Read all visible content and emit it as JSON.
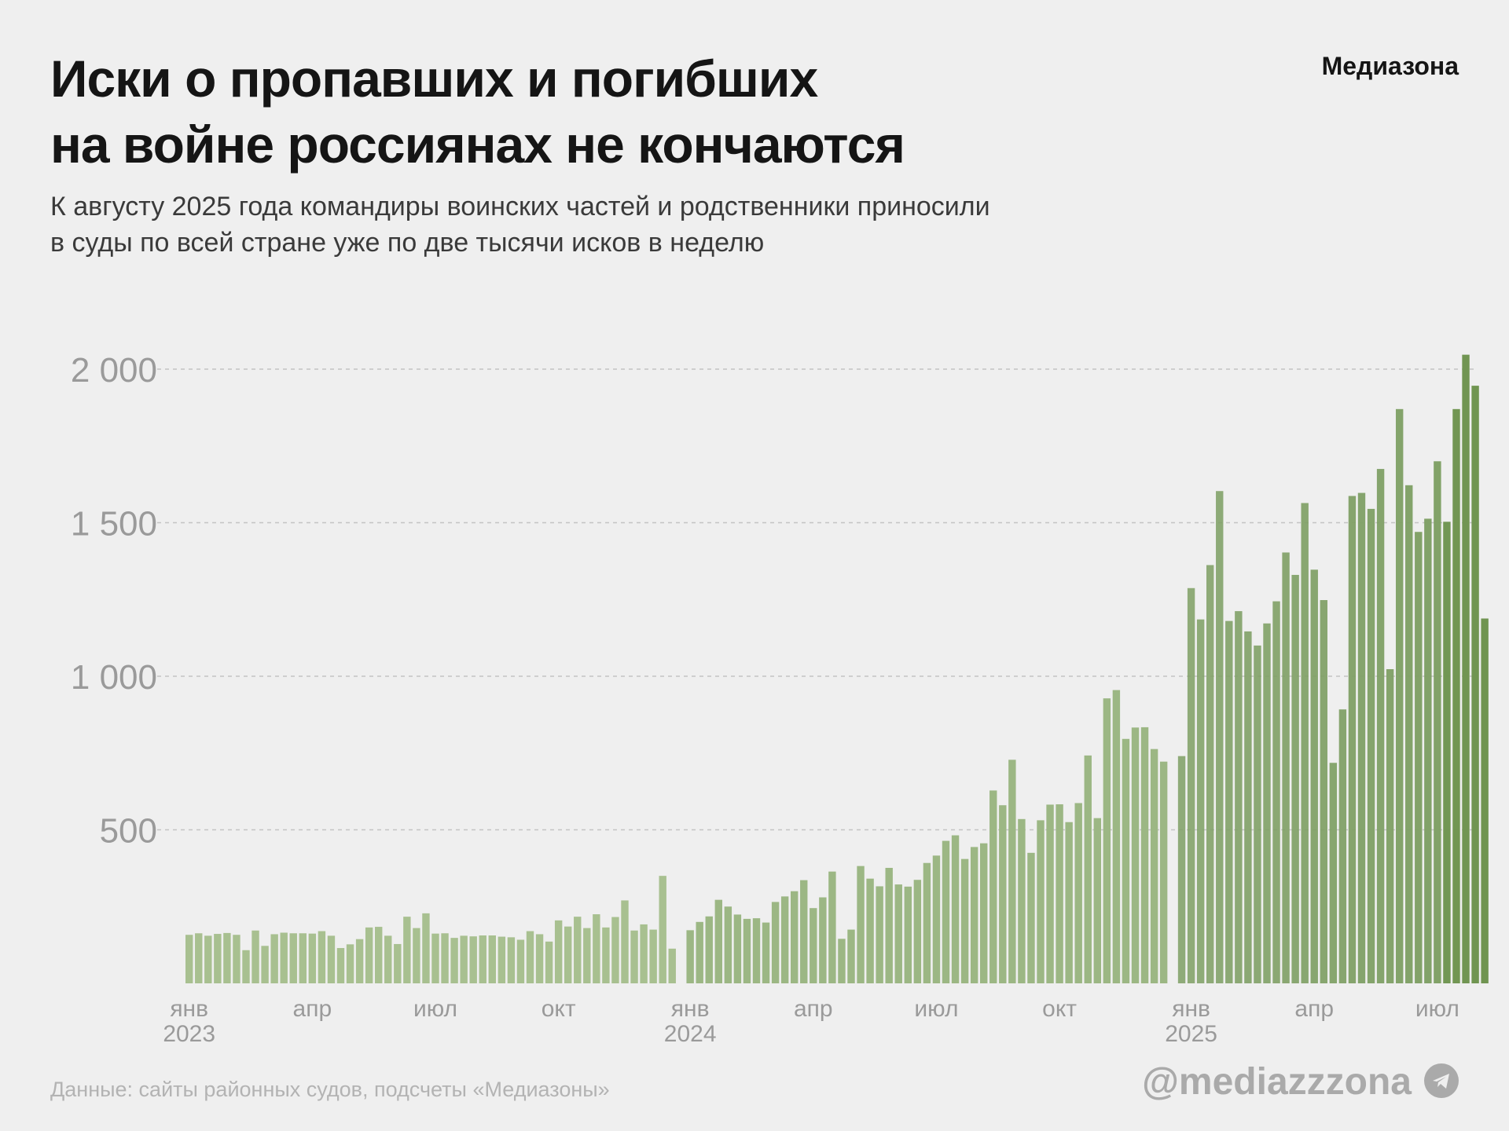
{
  "header": {
    "title_line1": "Иски о пропавших и погибших",
    "title_line2": "на войне россиянах не кончаются",
    "subtitle_line1": "К августу 2025 года командиры воинских частей и родственники приносили",
    "subtitle_line2": "в суды по всей стране уже по две тысячи исков в неделю",
    "brand": "Медиазона"
  },
  "footer": {
    "source": "Данные: сайты районных судов, подсчеты «Медиазоны»",
    "handle": "@mediazzzona",
    "icon": "telegram-icon"
  },
  "colors": {
    "bar_2023": "#a8c090",
    "bar_2024": "#9cb784",
    "bar_2025": "#7e9f64",
    "bar_peak": "#6f9450",
    "grid": "#c4c4c4",
    "axis_text": "#9a9a9a"
  },
  "chart_data": {
    "type": "bar",
    "title": "Иски о пропавших и погибших на войне россиянах не кончаются",
    "xlabel": "",
    "ylabel": "",
    "ylim": [
      0,
      2100
    ],
    "yticks": [
      500,
      1000,
      1500,
      2000
    ],
    "ytick_labels": [
      "500",
      "1 000",
      "1 500",
      "2 000"
    ],
    "grid": "horizontal dashed",
    "x_tick_labels": [
      {
        "label": "янв",
        "year": "2023",
        "week": 0
      },
      {
        "label": "апр",
        "year": "",
        "week": 13
      },
      {
        "label": "июл",
        "year": "",
        "week": 26
      },
      {
        "label": "окт",
        "year": "",
        "week": 39
      },
      {
        "label": "янв",
        "year": "2024",
        "week": 52
      },
      {
        "label": "апр",
        "year": "",
        "week": 65
      },
      {
        "label": "июл",
        "year": "",
        "week": 78
      },
      {
        "label": "окт",
        "year": "",
        "week": 91
      },
      {
        "label": "янв",
        "year": "2025",
        "week": 104
      },
      {
        "label": "апр",
        "year": "",
        "week": 117
      },
      {
        "label": "июл",
        "year": "",
        "week": 130
      }
    ],
    "series": [
      {
        "year": "2023",
        "values": [
          158,
          163,
          155,
          161,
          164,
          158,
          108,
          172,
          122,
          160,
          165,
          163,
          163,
          162,
          170,
          155,
          115,
          127,
          144,
          182,
          184,
          155,
          128,
          217,
          180,
          228,
          162,
          163,
          148,
          155,
          153,
          156,
          156,
          152,
          150,
          142,
          170,
          160,
          136,
          205,
          185,
          217,
          180,
          225,
          182,
          216,
          270,
          172,
          192,
          175,
          350,
          113
        ]
      },
      {
        "year": "2024",
        "values": [
          173,
          200,
          218,
          272,
          250,
          224,
          210,
          212,
          198,
          265,
          283,
          300,
          336,
          245,
          280,
          364,
          145,
          175,
          382,
          341,
          316,
          376,
          322,
          315,
          337,
          392,
          416,
          464,
          482,
          405,
          444,
          456,
          628,
          580,
          728,
          535,
          425,
          531,
          582,
          583,
          525,
          587,
          742,
          538,
          928,
          955,
          796,
          833,
          834,
          763,
          722
        ]
      },
      {
        "year": "2025",
        "values": [
          740,
          1287,
          1185,
          1362,
          1603,
          1180,
          1212,
          1146,
          1100,
          1172,
          1244,
          1403,
          1330,
          1564,
          1347,
          1248,
          718,
          892,
          1587,
          1597,
          1545,
          1675,
          1023,
          1870,
          1622,
          1470,
          1513,
          1700,
          1503,
          1870,
          2047,
          1946,
          1188
        ]
      }
    ]
  }
}
